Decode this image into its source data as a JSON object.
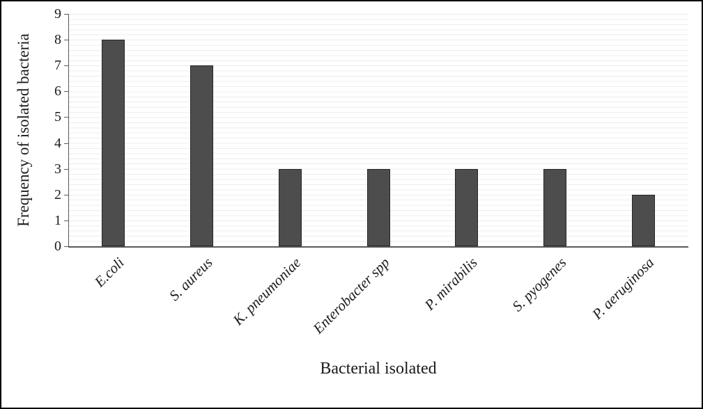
{
  "chart_data": {
    "type": "bar",
    "title": "",
    "xlabel": "Bacterial isolated",
    "ylabel": "Frequency of isolated bacteria",
    "categories": [
      "E.coli",
      "S. aureus",
      "K. pneumoniae",
      "Enterobacter spp",
      "P. mirabilis",
      "S. pyogenes",
      "P. aeruginosa"
    ],
    "values": [
      8,
      7,
      3,
      3,
      3,
      3,
      2
    ],
    "ylim": [
      0,
      9
    ],
    "yticks": [
      0,
      1,
      2,
      3,
      4,
      5,
      6,
      7,
      8,
      9
    ],
    "grid": "minor-horizontal",
    "legend": "none",
    "bar_color": "#4d4d4d",
    "bar_border_color": "#262626",
    "gridline_color": "#ececec",
    "axis_color": "#595959"
  }
}
